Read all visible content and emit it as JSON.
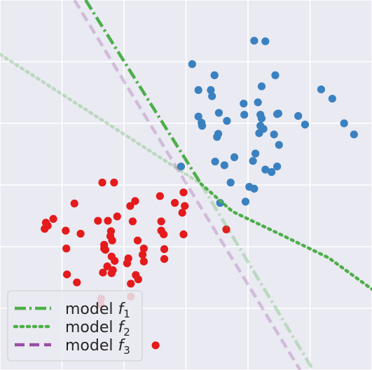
{
  "chart_data": {
    "type": "scatter",
    "title": "",
    "xlabel": "",
    "ylabel": "",
    "xlim": [
      0,
      6
    ],
    "ylim": [
      0,
      6
    ],
    "grid": true,
    "axes_background": "#EAEAF2",
    "grid_color": "#ffffff",
    "series": [
      {
        "color": "#3A81C1",
        "points": [
          [
            4.1,
            5.34
          ],
          [
            4.28,
            5.33
          ],
          [
            3.1,
            4.96
          ],
          [
            3.46,
            4.78
          ],
          [
            4.44,
            4.78
          ],
          [
            4.22,
            4.6
          ],
          [
            3.2,
            4.54
          ],
          [
            3.4,
            4.54
          ],
          [
            3.42,
            4.44
          ],
          [
            5.18,
            4.55
          ],
          [
            5.36,
            4.4
          ],
          [
            3.93,
            4.32
          ],
          [
            4.16,
            4.34
          ],
          [
            3.94,
            4.14
          ],
          [
            4.2,
            4.14
          ],
          [
            4.47,
            4.15
          ],
          [
            4.49,
            4.16
          ],
          [
            4.81,
            4.12
          ],
          [
            3.53,
            4.17
          ],
          [
            3.2,
            4.11
          ],
          [
            3.66,
            4.04
          ],
          [
            4.22,
            4.08
          ],
          [
            3.25,
            4.01
          ],
          [
            3.26,
            3.96
          ],
          [
            4.92,
            3.98
          ],
          [
            4.2,
            3.96
          ],
          [
            4.25,
            3.91
          ],
          [
            4.18,
            3.84
          ],
          [
            5.55,
            4.0
          ],
          [
            5.71,
            3.82
          ],
          [
            3.52,
            3.83
          ],
          [
            3.5,
            3.78
          ],
          [
            4.42,
            3.82
          ],
          [
            4.5,
            3.65
          ],
          [
            4.12,
            3.51
          ],
          [
            3.78,
            3.45
          ],
          [
            3.47,
            3.38
          ],
          [
            3.62,
            3.32
          ],
          [
            4.08,
            3.39
          ],
          [
            4.47,
            3.3
          ],
          [
            4.28,
            3.25
          ],
          [
            4.38,
            3.21
          ],
          [
            2.92,
            3.3
          ],
          [
            3.72,
            3.04
          ],
          [
            4.02,
            2.97
          ],
          [
            4.1,
            2.94
          ],
          [
            3.55,
            2.71
          ],
          [
            3.96,
            2.73
          ]
        ]
      },
      {
        "color": "#E41A1C",
        "points": [
          [
            1.65,
            3.04
          ],
          [
            1.84,
            3.04
          ],
          [
            2.96,
            2.88
          ],
          [
            2.58,
            2.82
          ],
          [
            1.2,
            2.7
          ],
          [
            2.18,
            2.74
          ],
          [
            2.1,
            2.66
          ],
          [
            2.82,
            2.71
          ],
          [
            2.98,
            2.66
          ],
          [
            1.89,
            2.49
          ],
          [
            2.94,
            2.55
          ],
          [
            0.86,
            2.45
          ],
          [
            1.58,
            2.42
          ],
          [
            1.74,
            2.42
          ],
          [
            2.14,
            2.41
          ],
          [
            2.6,
            2.41
          ],
          [
            0.74,
            2.39
          ],
          [
            0.77,
            2.34
          ],
          [
            1.06,
            2.26
          ],
          [
            1.79,
            2.25
          ],
          [
            2.6,
            2.26
          ],
          [
            3.65,
            2.28
          ],
          [
            0.72,
            2.29
          ],
          [
            1.78,
            2.17
          ],
          [
            2.96,
            2.2
          ],
          [
            1.3,
            2.21
          ],
          [
            2.64,
            2.2
          ],
          [
            1.81,
            2.1
          ],
          [
            2.22,
            2.1
          ],
          [
            1.07,
            1.97
          ],
          [
            1.68,
            2.03
          ],
          [
            1.7,
            1.95
          ],
          [
            2.65,
            1.96
          ],
          [
            2.32,
            1.97
          ],
          [
            1.68,
            1.97
          ],
          [
            2.3,
            1.87
          ],
          [
            1.8,
            1.84
          ],
          [
            2.07,
            1.81
          ],
          [
            1.85,
            1.77
          ],
          [
            2.65,
            1.8
          ],
          [
            2.32,
            1.76
          ],
          [
            2.05,
            1.73
          ],
          [
            1.73,
            1.68
          ],
          [
            1.82,
            1.62
          ],
          [
            1.66,
            1.58
          ],
          [
            1.8,
            1.57
          ],
          [
            1.08,
            1.55
          ],
          [
            2.19,
            1.54
          ],
          [
            2.23,
            1.47
          ],
          [
            1.24,
            1.42
          ],
          [
            2.11,
            1.4
          ],
          [
            1.63,
            1.16
          ],
          [
            2.11,
            1.19
          ],
          [
            1.62,
            1.06
          ],
          [
            2.51,
            0.4
          ]
        ]
      }
    ],
    "lines": [
      {
        "name": "model f_1",
        "label_main": "model ",
        "label_sub": "1",
        "color": "#4DAF4A",
        "style": "dashdot",
        "opacity_low": 0.3,
        "breakpoint_x": 3.24,
        "points": [
          [
            1.38,
            6.0
          ],
          [
            3.24,
            3.02
          ],
          [
            5.05,
            0.0
          ]
        ]
      },
      {
        "name": "model f_2",
        "label_main": "model ",
        "label_sub": "2",
        "color": "#4DAF4A",
        "style": "dotted",
        "opacity_low": 0.3,
        "breakpoint_x": 3.24,
        "points": [
          [
            0.0,
            5.12
          ],
          [
            3.24,
            3.02
          ],
          [
            3.75,
            2.57
          ],
          [
            4.5,
            2.21
          ],
          [
            5.3,
            1.82
          ],
          [
            6.0,
            1.31
          ]
        ]
      },
      {
        "name": "model f_3",
        "label_main": "model ",
        "label_sub": "3",
        "color": "#984EA3",
        "style": "dashed",
        "opacity_low": 0.3,
        "breakpoint_x": 99,
        "points": [
          [
            1.2,
            6.0
          ],
          [
            4.84,
            0.0
          ]
        ]
      }
    ],
    "legend_position": "lower-left"
  }
}
